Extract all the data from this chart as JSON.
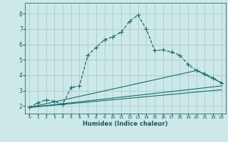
{
  "xlabel": "Humidex (Indice chaleur)",
  "background_color": "#cce8e8",
  "grid_color": "#aacccc",
  "line_color": "#1a6b6b",
  "xlim": [
    -0.5,
    23.5
  ],
  "ylim": [
    1.5,
    8.7
  ],
  "yticks": [
    2,
    3,
    4,
    5,
    6,
    7,
    8
  ],
  "xticks": [
    0,
    1,
    2,
    3,
    4,
    5,
    6,
    7,
    8,
    9,
    10,
    11,
    12,
    13,
    14,
    15,
    16,
    17,
    18,
    19,
    20,
    21,
    22,
    23
  ],
  "main_series": {
    "x": [
      0,
      1,
      2,
      3,
      4,
      5,
      6,
      7,
      8,
      9,
      10,
      11,
      12,
      13,
      14,
      15,
      16,
      17,
      18,
      19,
      20,
      21,
      22,
      23
    ],
    "y": [
      1.9,
      2.2,
      2.4,
      2.3,
      2.1,
      3.2,
      3.3,
      5.3,
      5.8,
      6.3,
      6.5,
      6.8,
      7.5,
      7.9,
      7.0,
      5.6,
      5.65,
      5.5,
      5.3,
      4.7,
      4.3,
      4.1,
      3.8,
      3.5
    ]
  },
  "line1": {
    "x": [
      0,
      20,
      23
    ],
    "y": [
      1.9,
      4.3,
      3.5
    ]
  },
  "line2": {
    "x": [
      0,
      23
    ],
    "y": [
      1.9,
      3.3
    ]
  },
  "line3": {
    "x": [
      0,
      23
    ],
    "y": [
      1.9,
      3.05
    ]
  }
}
